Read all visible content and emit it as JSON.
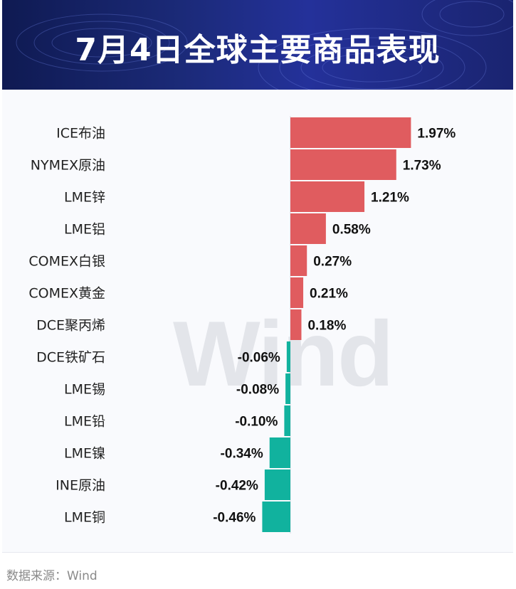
{
  "header": {
    "title": "7月4日全球主要商品表现"
  },
  "watermark": "Wind",
  "footer": {
    "source": "数据来源：Wind"
  },
  "colors": {
    "positive": "#e05c5f",
    "negative": "#11b29e",
    "banner": "#1b2a78"
  },
  "chart_data": {
    "type": "bar",
    "orientation": "horizontal",
    "title": "7月4日全球主要商品表现",
    "unit": "%",
    "categories": [
      "ICE布油",
      "NYMEX原油",
      "LME锌",
      "LME铝",
      "COMEX白银",
      "COMEX黄金",
      "DCE聚丙烯",
      "DCE铁矿石",
      "LME锡",
      "LME铅",
      "LME镍",
      "INE原油",
      "LME铜"
    ],
    "values": [
      1.97,
      1.73,
      1.21,
      0.58,
      0.27,
      0.21,
      0.18,
      -0.06,
      -0.08,
      -0.1,
      -0.34,
      -0.42,
      -0.46
    ],
    "value_labels": [
      "1.97%",
      "1.73%",
      "1.21%",
      "0.58%",
      "0.27%",
      "0.21%",
      "0.18%",
      "-0.06%",
      "-0.08%",
      "-0.10%",
      "-0.34%",
      "-0.42%",
      "-0.46%"
    ],
    "grid": false,
    "legend": "none"
  }
}
